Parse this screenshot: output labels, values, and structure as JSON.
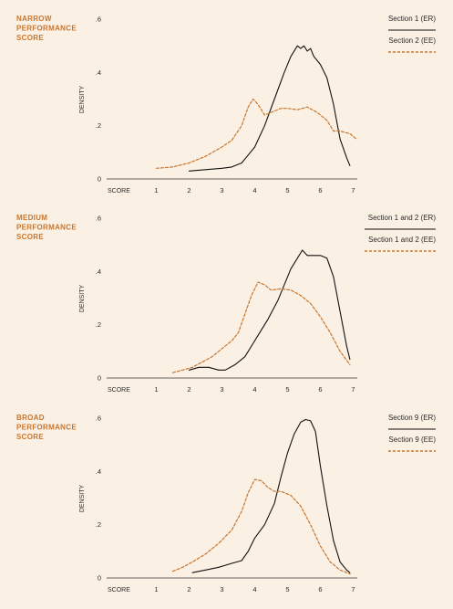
{
  "colors": {
    "background": "#fbf0e4",
    "title": "#c9762e",
    "er_line": "#111111",
    "ee_line": "#c9762e",
    "axis": "#333333"
  },
  "chart_data": [
    {
      "type": "line",
      "title_lines": [
        "NARROW",
        "PERFORMANCE",
        "SCORE"
      ],
      "xlabel": "SCORE",
      "ylabel": "DENSITY",
      "xticks": [
        1,
        2,
        3,
        4,
        5,
        6,
        7
      ],
      "yticks": [
        0,
        0.2,
        0.4,
        0.6
      ],
      "ytick_labels": [
        "0",
        ".2",
        ".4",
        ".6"
      ],
      "xlim": [
        0,
        8.0
      ],
      "ylim": [
        0,
        0.6
      ],
      "legend_position": "top-right",
      "series": [
        {
          "name": "Section 1 (ER)",
          "style": "solid",
          "color": "#111111",
          "x": [
            2,
            2.5,
            3,
            3.3,
            3.6,
            3.8,
            4.0,
            4.3,
            4.6,
            4.9,
            5.1,
            5.3,
            5.4,
            5.5,
            5.6,
            5.7,
            5.8,
            6.0,
            6.2,
            6.4,
            6.6,
            6.8,
            6.9
          ],
          "y": [
            0.03,
            0.035,
            0.04,
            0.045,
            0.06,
            0.09,
            0.12,
            0.2,
            0.3,
            0.4,
            0.46,
            0.5,
            0.49,
            0.5,
            0.48,
            0.49,
            0.46,
            0.43,
            0.38,
            0.28,
            0.15,
            0.08,
            0.05
          ]
        },
        {
          "name": "Section 2 (EE)",
          "style": "dashed",
          "color": "#c9762e",
          "x": [
            1,
            1.5,
            2,
            2.5,
            3,
            3.3,
            3.6,
            3.8,
            3.95,
            4.1,
            4.3,
            4.5,
            4.8,
            5.0,
            5.3,
            5.6,
            5.9,
            6.2,
            6.4,
            6.6,
            6.9,
            7.1
          ],
          "y": [
            0.04,
            0.045,
            0.06,
            0.085,
            0.12,
            0.145,
            0.2,
            0.27,
            0.3,
            0.28,
            0.24,
            0.25,
            0.265,
            0.265,
            0.26,
            0.27,
            0.25,
            0.22,
            0.18,
            0.18,
            0.17,
            0.15
          ]
        }
      ]
    },
    {
      "type": "line",
      "title_lines": [
        "MEDIUM",
        "PERFORMANCE",
        "SCORE"
      ],
      "xlabel": "SCORE",
      "ylabel": "DENSITY",
      "xticks": [
        1,
        2,
        3,
        4,
        5,
        6,
        7
      ],
      "yticks": [
        0,
        0.2,
        0.4,
        0.6
      ],
      "ytick_labels": [
        "0",
        ".2",
        ".4",
        ".6"
      ],
      "xlim": [
        0,
        8.0
      ],
      "ylim": [
        0,
        0.6
      ],
      "legend_position": "top-right",
      "series": [
        {
          "name": "Section 1 and 2 (ER)",
          "style": "solid",
          "color": "#111111",
          "x": [
            2,
            2.3,
            2.6,
            2.9,
            3.1,
            3.4,
            3.7,
            3.9,
            4.1,
            4.4,
            4.7,
            4.9,
            5.1,
            5.3,
            5.45,
            5.6,
            5.8,
            6.0,
            6.2,
            6.4,
            6.6,
            6.8,
            6.9
          ],
          "y": [
            0.03,
            0.04,
            0.04,
            0.03,
            0.03,
            0.05,
            0.08,
            0.12,
            0.16,
            0.22,
            0.29,
            0.35,
            0.41,
            0.45,
            0.48,
            0.46,
            0.46,
            0.46,
            0.45,
            0.38,
            0.25,
            0.12,
            0.07
          ]
        },
        {
          "name": "Section 1 and 2 (EE)",
          "style": "dashed",
          "color": "#c9762e",
          "x": [
            1.5,
            1.8,
            2.1,
            2.4,
            2.7,
            3.0,
            3.3,
            3.5,
            3.7,
            3.9,
            4.1,
            4.3,
            4.5,
            4.8,
            5.1,
            5.4,
            5.7,
            6.0,
            6.3,
            6.6,
            6.9
          ],
          "y": [
            0.02,
            0.03,
            0.04,
            0.06,
            0.08,
            0.11,
            0.14,
            0.17,
            0.24,
            0.31,
            0.36,
            0.35,
            0.33,
            0.335,
            0.33,
            0.31,
            0.28,
            0.23,
            0.17,
            0.1,
            0.05
          ]
        }
      ]
    },
    {
      "type": "line",
      "title_lines": [
        "BROAD",
        "PERFORMANCE",
        "SCORE"
      ],
      "xlabel": "SCORE",
      "ylabel": "DENSITY",
      "xticks": [
        1,
        2,
        3,
        4,
        5,
        6,
        7
      ],
      "yticks": [
        0,
        0.2,
        0.4,
        0.6
      ],
      "ytick_labels": [
        "0",
        ".2",
        ".4",
        ".6"
      ],
      "xlim": [
        0,
        8.0
      ],
      "ylim": [
        0,
        0.6
      ],
      "legend_position": "top-right",
      "series": [
        {
          "name": "Section 9 (ER)",
          "style": "solid",
          "color": "#111111",
          "x": [
            2.1,
            2.5,
            2.9,
            3.3,
            3.6,
            3.8,
            4.0,
            4.3,
            4.6,
            4.8,
            5.0,
            5.2,
            5.4,
            5.55,
            5.7,
            5.85,
            6.0,
            6.2,
            6.4,
            6.6,
            6.8,
            6.9
          ],
          "y": [
            0.02,
            0.03,
            0.04,
            0.055,
            0.065,
            0.1,
            0.15,
            0.2,
            0.28,
            0.38,
            0.47,
            0.54,
            0.585,
            0.595,
            0.59,
            0.55,
            0.42,
            0.27,
            0.14,
            0.06,
            0.03,
            0.02
          ]
        },
        {
          "name": "Section 9 (EE)",
          "style": "dashed",
          "color": "#c9762e",
          "x": [
            1.5,
            1.8,
            2.1,
            2.5,
            2.9,
            3.3,
            3.6,
            3.8,
            4.0,
            4.2,
            4.4,
            4.6,
            4.8,
            5.1,
            5.4,
            5.7,
            6.0,
            6.3,
            6.6,
            6.9
          ],
          "y": [
            0.025,
            0.04,
            0.06,
            0.09,
            0.13,
            0.18,
            0.25,
            0.32,
            0.37,
            0.365,
            0.34,
            0.325,
            0.325,
            0.31,
            0.27,
            0.2,
            0.12,
            0.06,
            0.03,
            0.015
          ]
        }
      ]
    }
  ]
}
